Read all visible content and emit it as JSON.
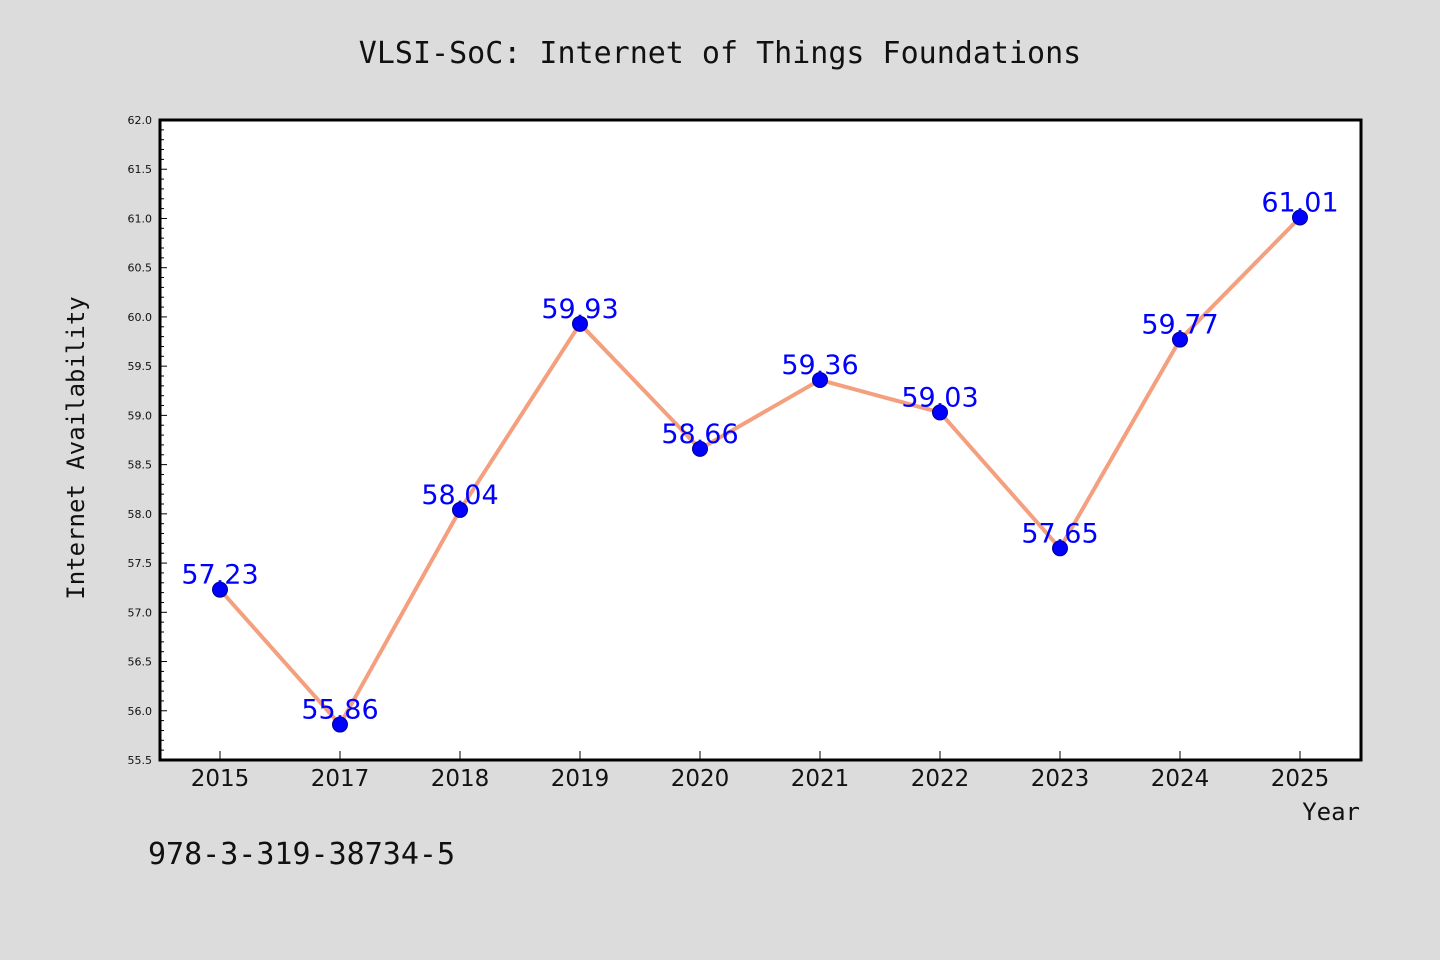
{
  "colors": {
    "background": "#dcdcdc",
    "plot_background": "#ffffff",
    "line": "#f4a07e",
    "marker": "#0000ff",
    "label": "#0000ff"
  },
  "footer_text": "978-3-319-38734-5",
  "chart_data": {
    "type": "line",
    "title": "VLSI-SoC: Internet of Things Foundations",
    "xlabel": "Year",
    "ylabel": "Internet Availability",
    "categories": [
      "2015",
      "2017",
      "2018",
      "2019",
      "2020",
      "2021",
      "2022",
      "2023",
      "2024",
      "2025"
    ],
    "series": [
      {
        "values": [
          57.23,
          55.86,
          58.04,
          59.93,
          58.66,
          59.36,
          59.03,
          57.65,
          59.77,
          61.01
        ]
      }
    ],
    "data_labels": [
      "57.23",
      "55.86",
      "58.04",
      "59.93",
      "58.66",
      "59.36",
      "59.03",
      "57.65",
      "59.77",
      "61.01"
    ],
    "ylim": [
      55.5,
      62.0
    ],
    "yticks": [
      "55.5",
      "56.0",
      "56.5",
      "57.0",
      "57.5",
      "58.0",
      "58.5",
      "59.0",
      "59.5",
      "60.0",
      "60.5",
      "61.0",
      "61.5",
      "62.0"
    ],
    "grid": false,
    "legend": "none"
  }
}
